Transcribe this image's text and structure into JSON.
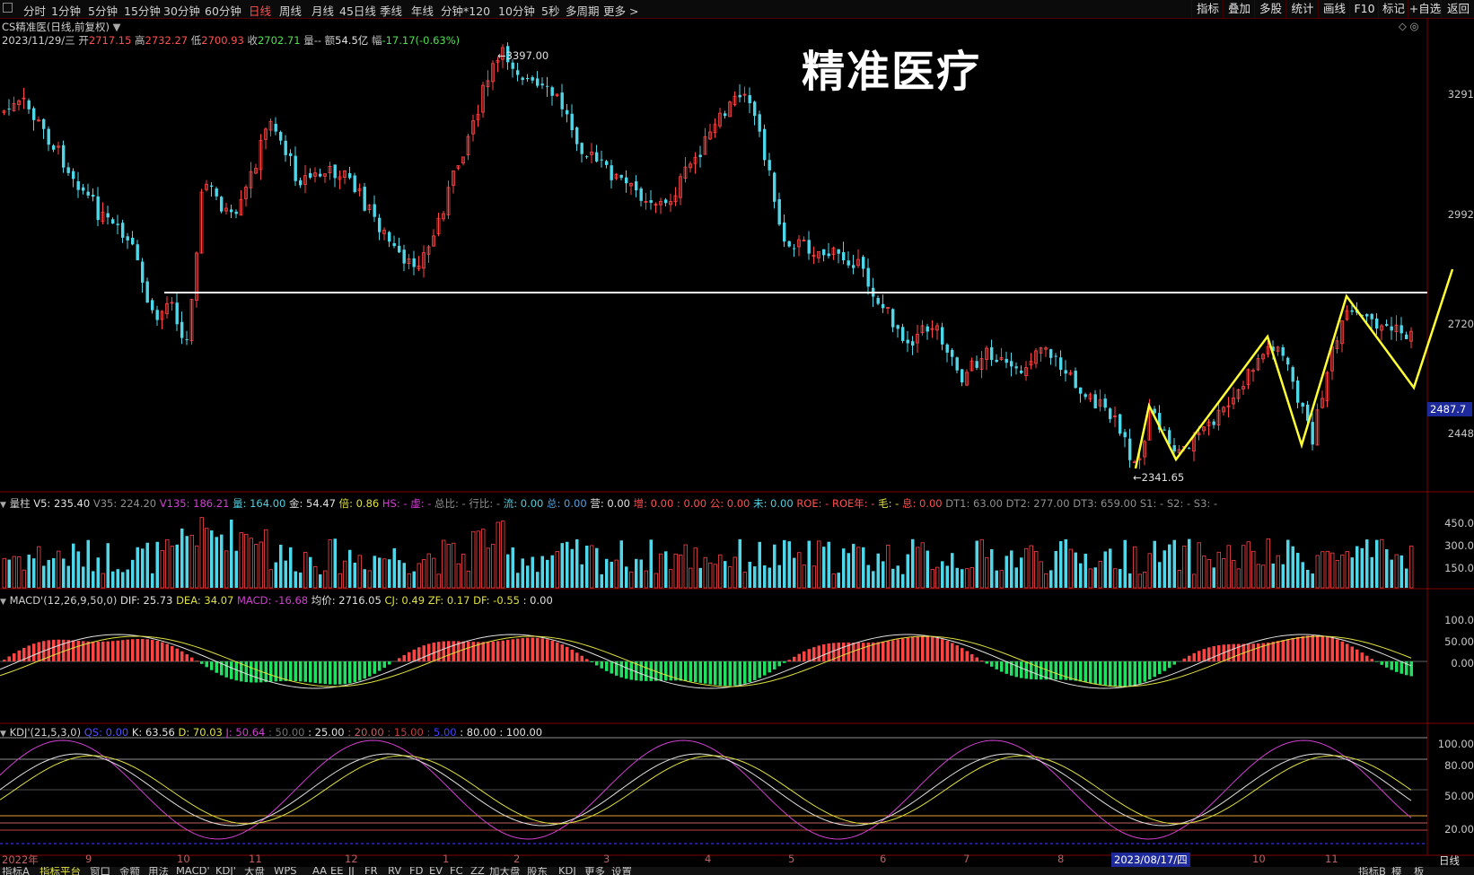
{
  "toolbar": {
    "periods": [
      "分时",
      "1分钟",
      "5分钟",
      "15分钟",
      "30分钟",
      "60分钟",
      "日线",
      "周线",
      "月线",
      "45日线",
      "季线",
      "年线",
      "分钟*120",
      "10分钟",
      "5秒",
      "多周期",
      "更多 >"
    ],
    "active_period": "日线",
    "tools": [
      "指标",
      "叠加",
      "多股",
      "统计",
      "画线",
      "F10",
      "标记",
      "+自选",
      "返回"
    ]
  },
  "header": {
    "stock_title": "CS精准医(日线,前复权)",
    "date": "2023/11/29/三",
    "open_label": "开",
    "open": "2717.15",
    "high_label": "高",
    "high": "2732.27",
    "low_label": "低",
    "low": "2700.93",
    "close_label": "收",
    "close": "2702.71",
    "vol_label": "量--",
    "amount_label": "额",
    "amount": "54.5亿",
    "change_label": "幅",
    "change": "-17.17(-0.63%)"
  },
  "overlay_title": "精准医疗",
  "price_axis": {
    "ticks": [
      "3291",
      "2992",
      "2720",
      "2448"
    ],
    "current_price": "2487.7",
    "high_marker": "3397.00",
    "low_marker": "2341.65"
  },
  "volume_panel": {
    "name": "量柱",
    "items": [
      {
        "label": "V5:",
        "value": "235.40",
        "color": "#e0e0e0"
      },
      {
        "label": "V35:",
        "value": "224.20",
        "color": "#909090"
      },
      {
        "label": "V135:",
        "value": "186.21",
        "color": "#d040d0"
      },
      {
        "label": "量:",
        "value": "164.00",
        "color": "#50d0e0"
      },
      {
        "label": "金:",
        "value": "54.47",
        "color": "#e0e0e0"
      },
      {
        "label": "倍:",
        "value": "0.86",
        "color": "#e0e040"
      },
      {
        "label": "HS:",
        "value": "-",
        "color": "#d040d0"
      },
      {
        "label": "虚:",
        "value": "-",
        "color": "#d040d0"
      },
      {
        "label": "总比:",
        "value": "-",
        "color": "#909090"
      },
      {
        "label": "行比:",
        "value": "-",
        "color": "#909090"
      },
      {
        "label": "流:",
        "value": "0.00",
        "color": "#50d0e0"
      },
      {
        "label": "总:",
        "value": "0.00",
        "color": "#50a0e0"
      },
      {
        "label": "营:",
        "value": "0.00",
        "color": "#e0e0e0"
      },
      {
        "label": "增:",
        "value": "0.00",
        "color": "#ff5050"
      },
      {
        "label": ":",
        "value": "0.00",
        "color": "#ff5050"
      },
      {
        "label": "公:",
        "value": "0.00",
        "color": "#ff5050"
      },
      {
        "label": "未:",
        "value": "0.00",
        "color": "#50d0e0"
      },
      {
        "label": "ROE:",
        "value": "-",
        "color": "#ff5050"
      },
      {
        "label": "ROE年:",
        "value": "-",
        "color": "#ff5050"
      },
      {
        "label": "毛:",
        "value": "-",
        "color": "#e0e040"
      },
      {
        "label": "息:",
        "value": "0.00",
        "color": "#ff5050"
      },
      {
        "label": "DT1:",
        "value": "63.00",
        "color": "#909090"
      },
      {
        "label": "DT2:",
        "value": "277.00",
        "color": "#909090"
      },
      {
        "label": "DT3:",
        "value": "659.00",
        "color": "#909090"
      },
      {
        "label": "S1:",
        "value": "-",
        "color": "#909090"
      },
      {
        "label": "S2:",
        "value": "-",
        "color": "#909090"
      },
      {
        "label": "S3:",
        "value": "-",
        "color": "#909090"
      }
    ],
    "ticks": [
      "450.0",
      "300.0",
      "150.0"
    ]
  },
  "macd_panel": {
    "name": "MACD'(12,26,9,50,0)",
    "items": [
      {
        "label": "DIF:",
        "value": "25.73",
        "color": "#e0e0e0"
      },
      {
        "label": "DEA:",
        "value": "34.07",
        "color": "#e0e040"
      },
      {
        "label": "MACD:",
        "value": "-16.68",
        "color": "#d040d0"
      },
      {
        "label": "均价:",
        "value": "2716.05",
        "color": "#e0e0e0"
      },
      {
        "label": "CJ:",
        "value": "0.49",
        "color": "#e0e040"
      },
      {
        "label": "ZF:",
        "value": "0.17",
        "color": "#e0e040"
      },
      {
        "label": "DF:",
        "value": "-0.55",
        "color": "#e0e040"
      },
      {
        "label": ":",
        "value": "0.00",
        "color": "#e0e0e0"
      }
    ],
    "ticks": [
      "100.0",
      "50.00",
      "0.00"
    ]
  },
  "kdj_panel": {
    "name": "KDJ'(21,5,3,0)",
    "items": [
      {
        "label": "QS:",
        "value": "0.00",
        "color": "#5050ff"
      },
      {
        "label": "K:",
        "value": "63.56",
        "color": "#e0e0e0"
      },
      {
        "label": "D:",
        "value": "70.03",
        "color": "#e0e040"
      },
      {
        "label": "J:",
        "value": "50.64",
        "color": "#d040d0"
      },
      {
        "label": ":",
        "value": "50.00",
        "color": "#707070"
      },
      {
        "label": ":",
        "value": "25.00",
        "color": "#e0e0e0"
      },
      {
        "label": ":",
        "value": "20.00",
        "color": "#c06060"
      },
      {
        "label": ":",
        "value": "15.00",
        "color": "#c04040"
      },
      {
        "label": ":",
        "value": "5.00",
        "color": "#4040ff"
      },
      {
        "label": ":",
        "value": "80.00",
        "color": "#e0e0e0"
      },
      {
        "label": ":",
        "value": "100.00",
        "color": "#e0e0e0"
      }
    ],
    "ticks": [
      "100.00",
      "80.00",
      "50.00",
      "20.00"
    ]
  },
  "x_axis": {
    "labels": [
      "2022年",
      "9",
      "10",
      "11",
      "12",
      "1",
      "2",
      "3",
      "4",
      "5",
      "6",
      "7",
      "8",
      "2023/08/17/四",
      "10",
      "11"
    ],
    "period_label": "日线"
  },
  "bottom_tabs": [
    "指标A",
    "指标平台",
    "窗口",
    "金额",
    "用法",
    "MACD'",
    "KDJ'",
    "大盘",
    "WPS",
    "AA",
    "EE",
    "JJ",
    "FR",
    "RV",
    "FD",
    "EV",
    "FC",
    "ZZ",
    "加大盘",
    "股东",
    "KDJ",
    "更多",
    "设置",
    "指标B",
    "模",
    "板"
  ],
  "colors": {
    "up": "#ff4444",
    "down": "#4fd6e8",
    "grid": "#600000",
    "trend": "#ffff33",
    "resistance": "#ffffff"
  }
}
